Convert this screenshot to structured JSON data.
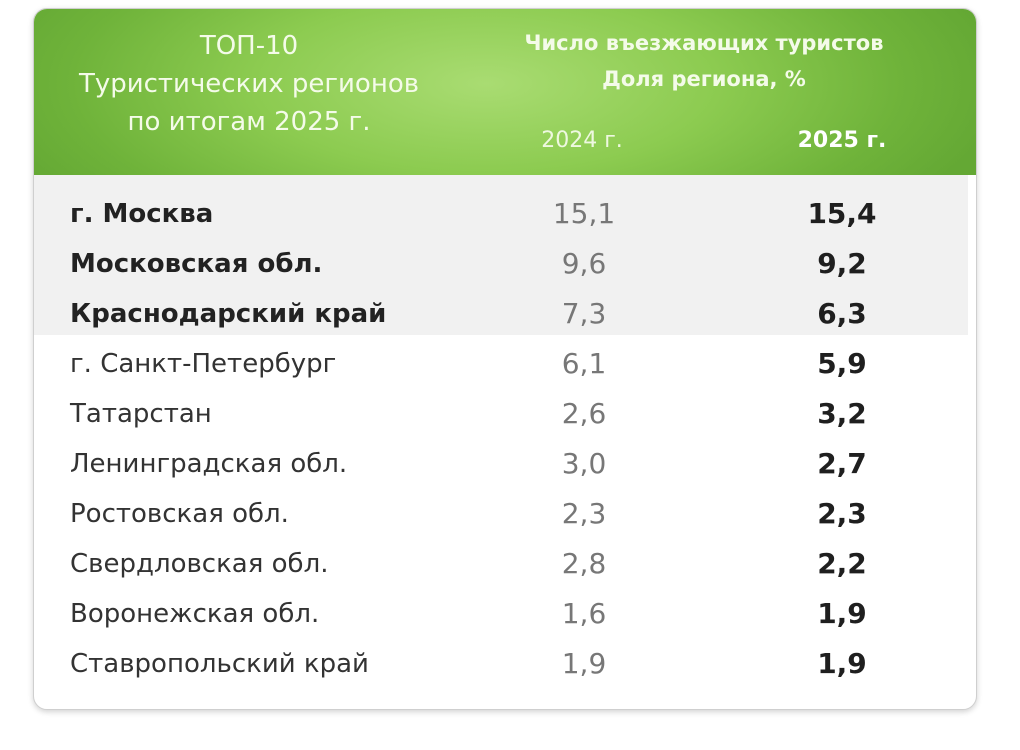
{
  "header": {
    "title_line1": "ТОП-10",
    "title_line2": "Туристических регионов",
    "title_line3": "по итогам 2025 г.",
    "metric_line1": "Число въезжающих туристов",
    "metric_line2": "Доля региона, %",
    "year_2024": "2024 г.",
    "year_2025": "2025 г."
  },
  "colors": {
    "header_green": "#8ccb50",
    "highlight_band": "#f1f1f1"
  },
  "rows": [
    {
      "region": "г. Москва",
      "v2024": "15,1",
      "v2025": "15,4",
      "highlight": true
    },
    {
      "region": "Московская обл.",
      "v2024": "9,6",
      "v2025": "9,2",
      "highlight": true
    },
    {
      "region": "Краснодарский край",
      "v2024": "7,3",
      "v2025": "6,3",
      "highlight": true
    },
    {
      "region": "г. Санкт-Петербург",
      "v2024": "6,1",
      "v2025": "5,9",
      "highlight": false
    },
    {
      "region": "Татарстан",
      "v2024": "2,6",
      "v2025": "3,2",
      "highlight": false
    },
    {
      "region": "Ленинградская обл.",
      "v2024": "3,0",
      "v2025": "2,7",
      "highlight": false
    },
    {
      "region": "Ростовская обл.",
      "v2024": "2,3",
      "v2025": "2,3",
      "highlight": false
    },
    {
      "region": "Свердловская обл.",
      "v2024": "2,8",
      "v2025": "2,2",
      "highlight": false
    },
    {
      "region": "Воронежская обл.",
      "v2024": "1,6",
      "v2025": "1,9",
      "highlight": false
    },
    {
      "region": "Ставропольский край",
      "v2024": "1,9",
      "v2025": "1,9",
      "highlight": false
    }
  ]
}
